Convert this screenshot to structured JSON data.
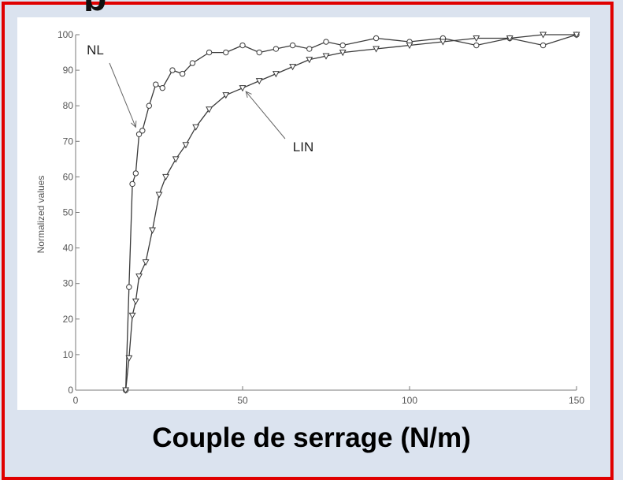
{
  "slide": {
    "title_fragment": "p",
    "caption": "Couple de serrage (N/m)",
    "frame_color": "#e00000",
    "background_color": "#dbe3ef"
  },
  "chart_data": {
    "type": "line",
    "ylabel": "Normalized values",
    "xlim": [
      0,
      150
    ],
    "ylim": [
      0,
      100
    ],
    "x_ticks": [
      "0",
      "50",
      "100",
      "150"
    ],
    "y_ticks": [
      "0",
      "10",
      "20",
      "30",
      "40",
      "50",
      "60",
      "70",
      "80",
      "90",
      "100"
    ],
    "grid": false,
    "series": [
      {
        "name": "NL",
        "marker": "circle",
        "x": [
          15,
          16,
          17,
          18,
          19,
          20,
          22,
          24,
          26,
          29,
          32,
          35,
          40,
          45,
          50,
          55,
          60,
          65,
          70,
          75,
          80,
          90,
          100,
          110,
          120,
          130,
          140,
          150
        ],
        "y": [
          0,
          29,
          58,
          61,
          72,
          73,
          80,
          86,
          85,
          90,
          89,
          92,
          95,
          95,
          97,
          95,
          96,
          97,
          96,
          98,
          97,
          99,
          98,
          99,
          97,
          99,
          97,
          100
        ]
      },
      {
        "name": "LIN",
        "marker": "triangle-down",
        "x": [
          15,
          16,
          17,
          18,
          19,
          21,
          23,
          25,
          27,
          30,
          33,
          36,
          40,
          45,
          50,
          55,
          60,
          65,
          70,
          75,
          80,
          90,
          100,
          110,
          120,
          130,
          140,
          150
        ],
        "y": [
          0,
          9,
          21,
          25,
          32,
          36,
          45,
          55,
          60,
          65,
          69,
          74,
          79,
          83,
          85,
          87,
          89,
          91,
          93,
          94,
          95,
          96,
          97,
          98,
          99,
          99,
          100,
          100
        ]
      }
    ],
    "annotations": [
      {
        "text": "NL",
        "series": "NL",
        "arrow_to_x": 18,
        "arrow_to_y": 74
      },
      {
        "text": "LIN",
        "series": "LIN",
        "arrow_to_x": 51,
        "arrow_to_y": 84
      }
    ],
    "colors": {
      "line": "#3a3a3a",
      "axis": "#7a7a7a",
      "tick_text": "#555555"
    }
  }
}
